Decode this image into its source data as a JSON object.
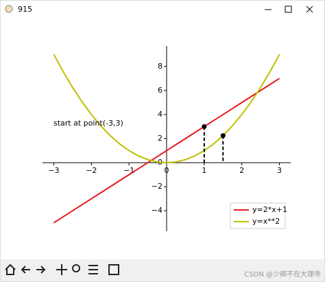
{
  "window": {
    "title": "915"
  },
  "watermark": "CSDN @少卿不在大理寺",
  "chart_data": {
    "type": "line",
    "x": [
      -3,
      -2.75,
      -2.5,
      -2.25,
      -2,
      -1.75,
      -1.5,
      -1.25,
      -1,
      -0.75,
      -0.5,
      -0.25,
      0,
      0.25,
      0.5,
      0.75,
      1,
      1.25,
      1.5,
      1.75,
      2,
      2.25,
      2.5,
      2.75,
      3
    ],
    "series": [
      {
        "name": "y=2*x+1",
        "color": "#e41a1c",
        "values": [
          -5,
          -4.5,
          -4,
          -3.5,
          -3,
          -2.5,
          -2,
          -1.5,
          -1,
          -0.5,
          0,
          0.5,
          1,
          1.5,
          2,
          2.5,
          3,
          3.5,
          4,
          4.5,
          5,
          5.5,
          6,
          6.5,
          7
        ]
      },
      {
        "name": "y=x**2",
        "color": "#bfbf00",
        "values": [
          9,
          7.5625,
          6.25,
          5.0625,
          4,
          3.0625,
          2.25,
          1.5625,
          1,
          0.5625,
          0.25,
          0.0625,
          0,
          0.0625,
          0.25,
          0.5625,
          1,
          1.5625,
          2.25,
          3.0625,
          4,
          5.0625,
          6.25,
          7.5625,
          9
        ]
      }
    ],
    "points": {
      "x": [
        1,
        1.5
      ],
      "y": [
        3,
        2.25
      ],
      "color": "#000000"
    },
    "annotation": "start at point(-3,3)",
    "xlim": [
      -3.3,
      3.3
    ],
    "ylim": [
      -5.7,
      9.7
    ],
    "xticks": [
      {
        "value": -3,
        "label": "−3"
      },
      {
        "value": -2,
        "label": "−2"
      },
      {
        "value": -1,
        "label": "−1"
      },
      0,
      1,
      2,
      3
    ],
    "yticks": [
      {
        "value": -4,
        "label": "−4"
      },
      {
        "value": -2,
        "label": "−2"
      },
      0,
      2,
      4,
      6,
      8
    ],
    "legend": "lower right"
  }
}
